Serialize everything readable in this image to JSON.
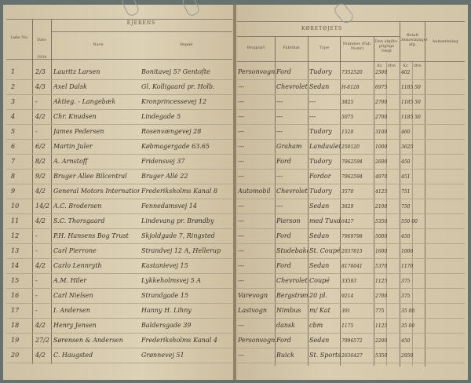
{
  "left_header": {
    "no": "Løbe No.",
    "date": "Dato",
    "year": "1934",
    "group": "EJERENS",
    "name": "Navn",
    "address": "Bopæl"
  },
  "right_header": {
    "group": "KØRETØJETS",
    "use": "Brugsart",
    "make": "Fabrikat",
    "type": "Type",
    "number": "Nummer (Fab. Numr)",
    "weight": "Den afgifts-pligtige Vægt",
    "paid": "Betalt Omkostninger afg.",
    "remarks": "Anmærkning",
    "kr": "Kr.",
    "ore": "Øre"
  },
  "rows": [
    {
      "no": "1",
      "date": "2/3",
      "name": "Lauritz Larsen",
      "addr": "Bonitavej 5? Gentofte",
      "use": "Personvogn",
      "make": "Ford",
      "type": "Tudory",
      "num": "7352520",
      "w": "2500",
      "p": "402"
    },
    {
      "no": "2",
      "date": "4/3",
      "name": "Axel Dalsk",
      "addr": "Gl. Kolligaard pr. Holb.",
      "use": "---",
      "make": "Chevrolet",
      "type": "Sedan",
      "num": "H-8128",
      "w": "6975",
      "p": "1185 50"
    },
    {
      "no": "3",
      "date": "-",
      "name": "Aktieg. - Langebæk",
      "addr": "Kronprincessevej 12",
      "use": "---",
      "make": "---",
      "type": "---",
      "num": "3825",
      "w": "2700",
      "p": "1185 50"
    },
    {
      "no": "4",
      "date": "4/2",
      "name": "Chr. Knudsen",
      "addr": "Lindegade 5",
      "use": "---",
      "make": "---",
      "type": "---",
      "num": "5075",
      "w": "2700",
      "p": "1185 50"
    },
    {
      "no": "5",
      "date": "-",
      "name": "James Pedersen",
      "addr": "Rosenvængevej 28",
      "use": "---",
      "make": "---",
      "type": "Tudory",
      "num": "1520",
      "w": "3100",
      "p": "460"
    },
    {
      "no": "6",
      "date": "6/2",
      "name": "Martin Juler",
      "addr": "Købmagergade 63.65",
      "use": "---",
      "make": "Graham",
      "type": "Landaulet",
      "num": "250120",
      "w": "1000",
      "p": "3625"
    },
    {
      "no": "7",
      "date": "8/2",
      "name": "A. Arnstoff",
      "addr": "Fridensvej 37",
      "use": "---",
      "make": "Ford",
      "type": "Tudory",
      "num": "7962594",
      "w": "2600",
      "p": "450"
    },
    {
      "no": "8",
      "date": "9/2",
      "name": "Bruger Allee Bilcentral",
      "addr": "Bruger Allé 22",
      "use": "---",
      "make": "---",
      "type": "Fordor",
      "num": "7962594",
      "w": "4970",
      "p": "451"
    },
    {
      "no": "9",
      "date": "4/2",
      "name": "General Motors International",
      "addr": "Frederiksholms Kanal 8",
      "use": "Automobil",
      "make": "Chevrolet",
      "type": "Tudory",
      "num": "3570",
      "w": "4125",
      "p": "751"
    },
    {
      "no": "10",
      "date": "14/2",
      "name": "A.C. Brodersen",
      "addr": "Fennedamsvej 14",
      "use": "---",
      "make": "---",
      "type": "Sedan",
      "num": "3629",
      "w": "2100",
      "p": "750"
    },
    {
      "no": "11",
      "date": "4/2",
      "name": "S.C. Thorsgaard",
      "addr": "Lindevang pr. Brøndby",
      "use": "---",
      "make": "Pierson",
      "type": "med Tuxdel",
      "num": "6427",
      "w": "5350",
      "p": "550 00"
    },
    {
      "no": "12",
      "date": "-",
      "name": "P.H. Hansens Bog Trust",
      "addr": "Skjoldgade 7, Ringsted",
      "use": "---",
      "make": "Ford",
      "type": "Sedan",
      "num": "7969798",
      "w": "5000",
      "p": "450"
    },
    {
      "no": "13",
      "date": "-",
      "name": "Carl Pierrone",
      "addr": "Strandvej 12 A, Hellerup",
      "use": "---",
      "make": "Studebaker",
      "type": "St. Coupé",
      "num": "2037815",
      "w": "1600",
      "p": "1000"
    },
    {
      "no": "14",
      "date": "4/2",
      "name": "Carlo Lennryth",
      "addr": "Kastanievej 15",
      "use": "---",
      "make": "Ford",
      "type": "Sedan",
      "num": "8176041",
      "w": "5370",
      "p": "1170"
    },
    {
      "no": "15",
      "date": "-",
      "name": "A.M. Hiler",
      "addr": "Lykkeholmsvej 5 A",
      "use": "---",
      "make": "Chevrolet",
      "type": "Coupé",
      "num": "33593",
      "w": "1125",
      "p": "375"
    },
    {
      "no": "16",
      "date": "-",
      "name": "Carl Nielsen",
      "addr": "Strandgade 15",
      "use": "Varevogn",
      "make": "Bergstrøm",
      "type": "20 pl.",
      "num": "9214",
      "w": "2700",
      "p": "375"
    },
    {
      "no": "17",
      "date": "-",
      "name": "I. Andersen",
      "addr": "Hanny H. Lihny",
      "use": "Lastvogn",
      "make": "Nimbus",
      "type": "m/ Kat",
      "num": "391",
      "w": "775",
      "p": "35 00"
    },
    {
      "no": "18",
      "date": "4/2",
      "name": "Henry Jensen",
      "addr": "Baldersgade 39",
      "use": "---",
      "make": "dansk",
      "type": "cbm",
      "num": "1175",
      "w": "1125",
      "p": "35 00"
    },
    {
      "no": "19",
      "date": "27/2",
      "name": "Sørensen & Andersen",
      "addr": "Frederiksholms Kanal 4",
      "use": "Personvogn",
      "make": "Ford",
      "type": "Sedan",
      "num": "7996572",
      "w": "2200",
      "p": "450"
    },
    {
      "no": "20",
      "date": "4/2",
      "name": "C. Haugsted",
      "addr": "Grønnevej 51",
      "use": "---",
      "make": "Buick",
      "type": "St. Sports",
      "num": "2636427",
      "w": "5350",
      "p": "2950"
    }
  ]
}
